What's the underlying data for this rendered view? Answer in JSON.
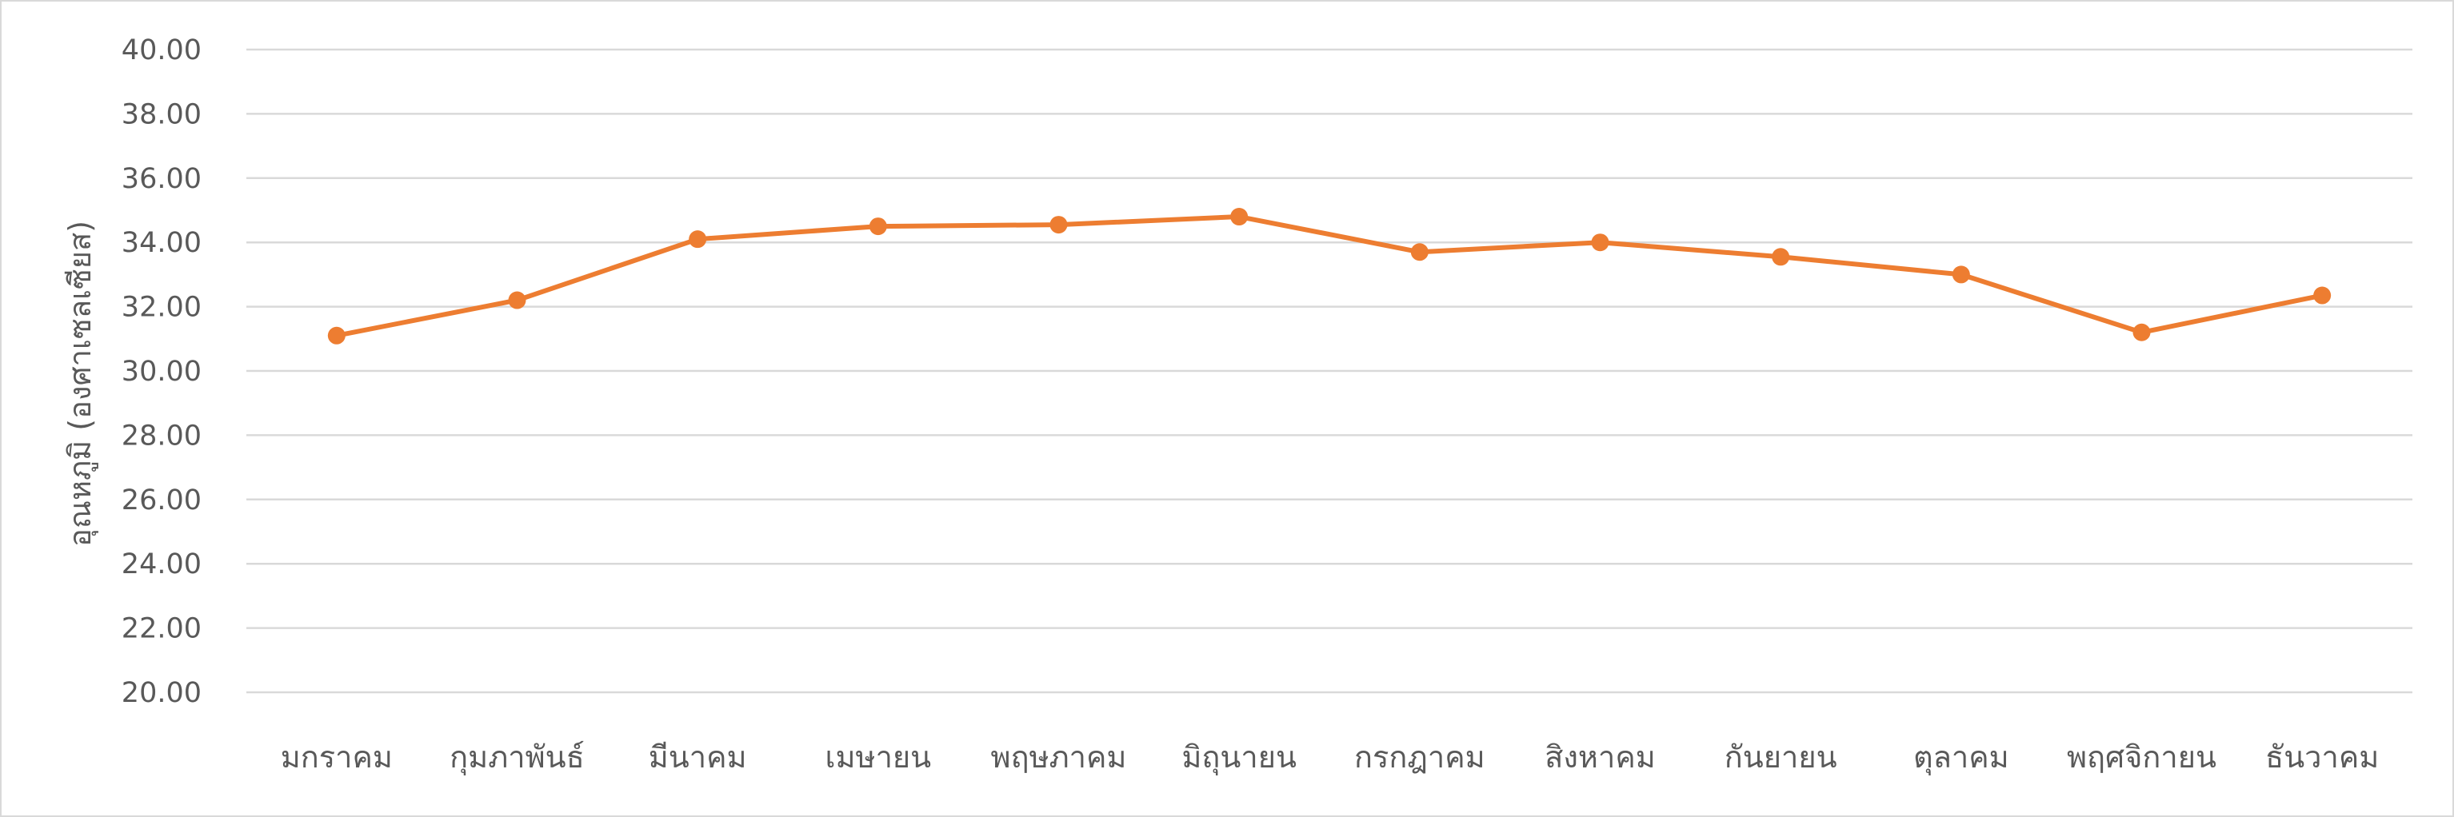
{
  "chart_data": {
    "type": "line",
    "title": "",
    "xlabel": "",
    "ylabel": "อุณหภูมิ (องศาเซลเซียส)",
    "categories": [
      "มกราคม",
      "กุมภาพันธ์",
      "มีนาคม",
      "เมษายน",
      "พฤษภาคม",
      "มิถุนายน",
      "กรกฎาคม",
      "สิงหาคม",
      "กันยายน",
      "ตุลาคม",
      "พฤศจิกายน",
      "ธันวาคม"
    ],
    "series": [
      {
        "values": [
          31.1,
          32.2,
          34.1,
          34.5,
          34.55,
          34.8,
          33.7,
          34.0,
          33.55,
          33.0,
          31.2,
          32.35
        ]
      }
    ],
    "ylim": [
      20,
      40
    ],
    "yticks": [
      "20.00",
      "22.00",
      "24.00",
      "26.00",
      "28.00",
      "30.00",
      "32.00",
      "34.00",
      "36.00",
      "38.00",
      "40.00"
    ],
    "grid": true,
    "legend": "none",
    "colors": {
      "line": "#ed7d31",
      "grid": "#d9d9d9",
      "text": "#595959"
    }
  }
}
